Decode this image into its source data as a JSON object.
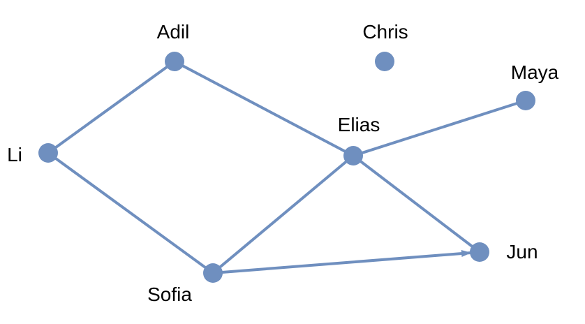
{
  "colors": {
    "node": "#6f8fbf",
    "edge": "#6f8fbf",
    "text": "#000000",
    "background": "#ffffff"
  },
  "graph": {
    "nodes": [
      {
        "id": "adil",
        "label": "Adil"
      },
      {
        "id": "chris",
        "label": "Chris"
      },
      {
        "id": "maya",
        "label": "Maya"
      },
      {
        "id": "elias",
        "label": "Elias"
      },
      {
        "id": "li",
        "label": "Li"
      },
      {
        "id": "sofia",
        "label": "Sofia"
      },
      {
        "id": "jun",
        "label": "Jun"
      }
    ],
    "edges": [
      {
        "source": "adil",
        "target": "li"
      },
      {
        "source": "adil",
        "target": "elias"
      },
      {
        "source": "li",
        "target": "sofia"
      },
      {
        "source": "sofia",
        "target": "elias"
      },
      {
        "source": "sofia",
        "target": "jun",
        "directed": true
      },
      {
        "source": "elias",
        "target": "maya"
      },
      {
        "source": "elias",
        "target": "jun"
      }
    ]
  }
}
